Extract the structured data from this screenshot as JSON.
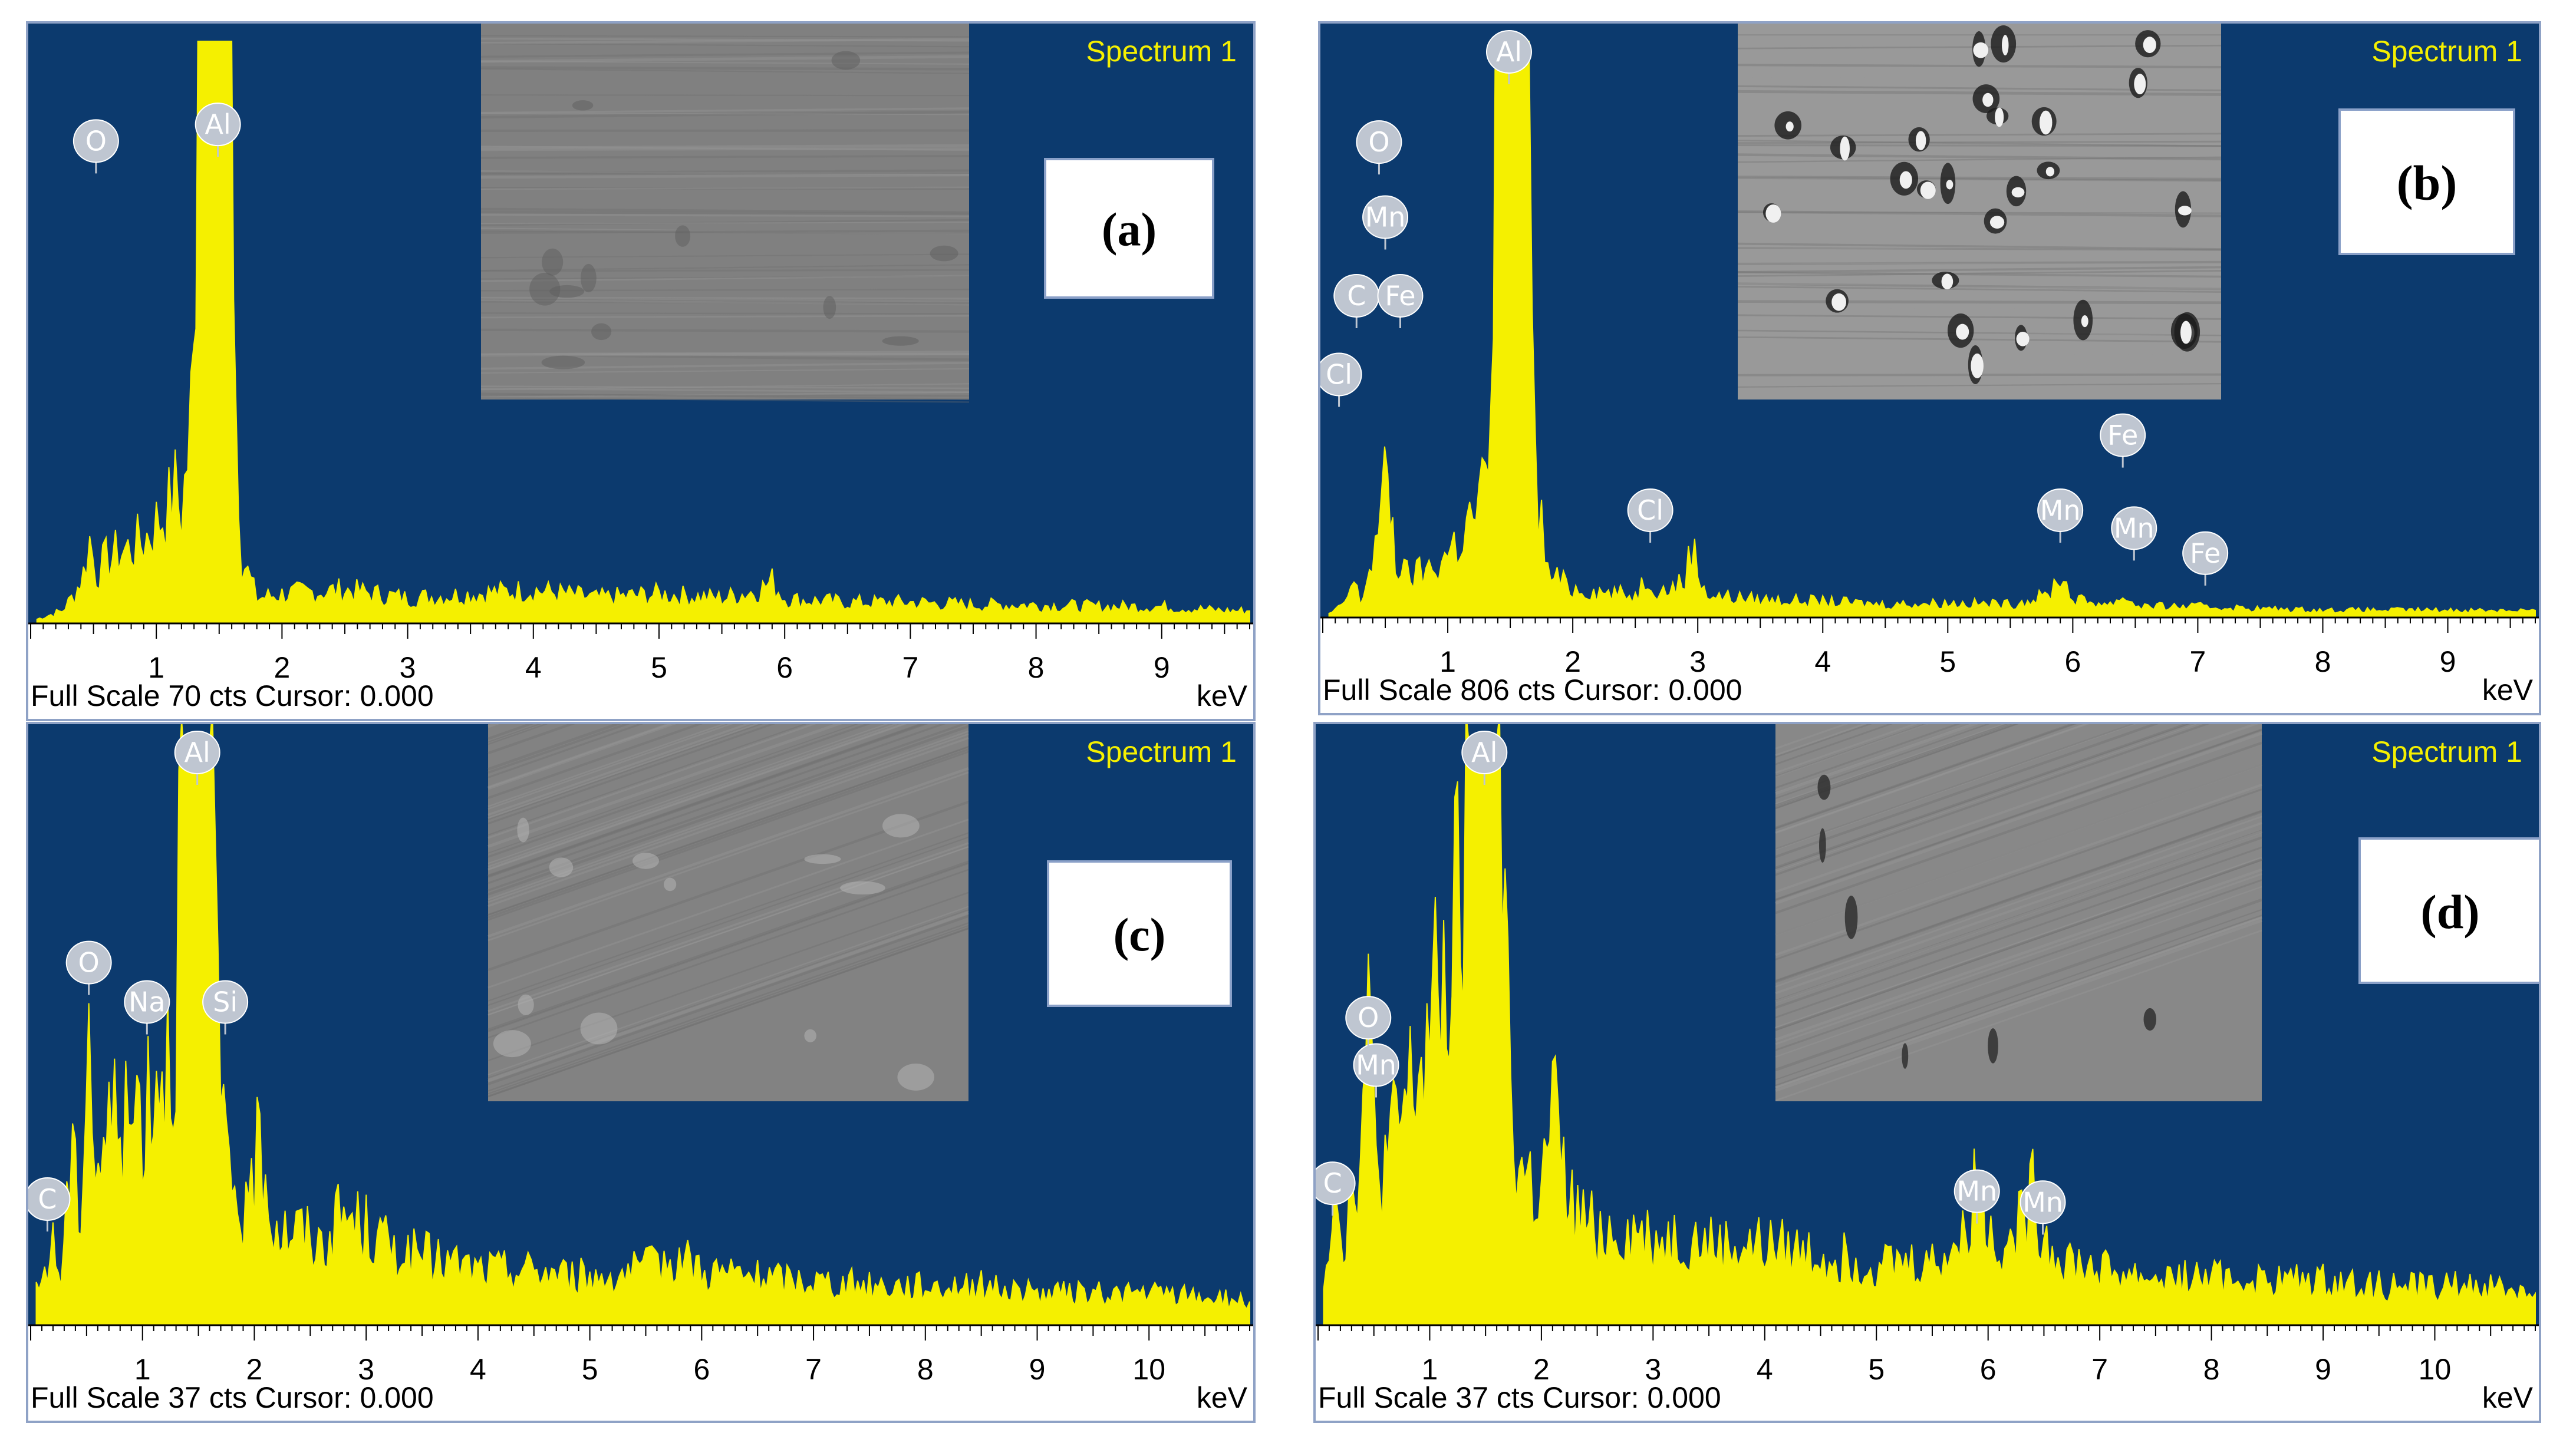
{
  "chart_data": [
    {
      "type": "area",
      "panel_label": "(a)",
      "spectrum_label": "Spectrum 1",
      "footer": "Full Scale 70 cts Cursor: 0.000",
      "xlabel": "keV",
      "xlim": [
        0,
        9.7
      ],
      "ylim": [
        0,
        70
      ],
      "xticks": [
        1,
        2,
        3,
        4,
        5,
        6,
        7,
        8,
        9
      ],
      "colors": {
        "background": "#0c3a6e",
        "spectrum": "#f5f000",
        "tag": "#bfc6d1",
        "inset": "#7c7c7c"
      },
      "inset": {
        "description": "SEM micrograph",
        "tone": "#808080"
      },
      "x": [
        0.05,
        0.25,
        0.35,
        0.42,
        0.47,
        0.52,
        0.6,
        0.7,
        0.8,
        0.9,
        1.0,
        1.1,
        1.15,
        1.2,
        1.25,
        1.3,
        1.33,
        1.36,
        1.4,
        1.45,
        1.5,
        1.55,
        1.6,
        1.63,
        1.68,
        1.8,
        2.0,
        2.5,
        3.0,
        3.5,
        4.0,
        4.5,
        5.0,
        5.5,
        5.8,
        5.9,
        6.0,
        6.1,
        6.5,
        7.0,
        7.5,
        8.0,
        8.5,
        9.0,
        9.5,
        9.7
      ],
      "y": [
        0.5,
        1.5,
        3.5,
        6,
        10,
        6,
        7.5,
        8.5,
        9,
        10,
        12,
        14,
        16,
        13,
        20,
        30,
        70,
        70,
        70,
        70,
        70,
        70,
        70,
        30,
        8,
        3,
        3.5,
        4,
        3,
        3.5,
        4,
        3,
        3.5,
        3,
        4,
        5,
        3,
        2.8,
        2.5,
        2.5,
        2.2,
        2.2,
        2,
        2,
        1.5,
        1.5
      ],
      "peaks": [
        {
          "element": "O",
          "energy": 0.52,
          "label_y": 58
        },
        {
          "element": "Al",
          "energy": 1.49,
          "label_y": 60
        }
      ]
    },
    {
      "type": "area",
      "panel_label": "(b)",
      "spectrum_label": "Spectrum 1",
      "footer": "Full Scale 806 cts Cursor: 0.000",
      "xlabel": "keV",
      "xlim": [
        0,
        9.7
      ],
      "ylim": [
        0,
        806
      ],
      "xticks": [
        1,
        2,
        3,
        4,
        5,
        6,
        7,
        8,
        9
      ],
      "colors": {
        "background": "#0c3a6e",
        "spectrum": "#f5f000",
        "tag": "#bfc6d1",
        "inset": "#9a9a9a"
      },
      "inset": {
        "description": "SEM micrograph with bright particles",
        "tone": "#999999"
      },
      "x": [
        0.05,
        0.15,
        0.2,
        0.25,
        0.3,
        0.35,
        0.42,
        0.47,
        0.52,
        0.58,
        0.65,
        0.75,
        0.9,
        1.0,
        1.1,
        1.2,
        1.3,
        1.35,
        1.38,
        1.42,
        1.48,
        1.55,
        1.6,
        1.65,
        1.7,
        1.8,
        2.0,
        2.5,
        2.6,
        2.7,
        2.9,
        2.95,
        3.0,
        3.1,
        3.5,
        4.0,
        4.5,
        5.0,
        5.5,
        5.8,
        5.9,
        6.0,
        6.3,
        6.4,
        6.5,
        6.6,
        7.0,
        7.5,
        8.0,
        8.5,
        9.0,
        9.7
      ],
      "y": [
        5,
        15,
        30,
        50,
        20,
        50,
        100,
        150,
        200,
        80,
        60,
        60,
        70,
        90,
        110,
        140,
        180,
        250,
        806,
        806,
        806,
        806,
        806,
        806,
        200,
        60,
        40,
        30,
        60,
        35,
        50,
        110,
        60,
        30,
        25,
        22,
        18,
        20,
        18,
        30,
        60,
        25,
        18,
        30,
        18,
        15,
        15,
        12,
        10,
        10,
        10,
        10
      ],
      "peaks": [
        {
          "element": "Cl",
          "energy": 0.13,
          "label_y": 340
        },
        {
          "element": "C",
          "energy": 0.27,
          "label_y": 450
        },
        {
          "element": "Fe",
          "energy": 0.62,
          "label_y": 450
        },
        {
          "element": "Mn",
          "energy": 0.5,
          "label_y": 560
        },
        {
          "element": "O",
          "energy": 0.45,
          "label_y": 665
        },
        {
          "element": "Al",
          "energy": 1.49,
          "label_y": 1000
        },
        {
          "element": "Cl",
          "energy": 2.62,
          "label_y": 150
        },
        {
          "element": "Mn",
          "energy": 5.9,
          "label_y": 150
        },
        {
          "element": "Fe",
          "energy": 6.4,
          "label_y": 255
        },
        {
          "element": "Mn",
          "energy": 6.49,
          "label_y": 125
        },
        {
          "element": "Fe",
          "energy": 7.06,
          "label_y": 90
        }
      ]
    },
    {
      "type": "area",
      "panel_label": "(c)",
      "spectrum_label": "Spectrum 1",
      "footer": "Full Scale 37 cts Cursor: 0.000",
      "xlabel": "keV",
      "xlim": [
        0,
        10.9
      ],
      "ylim": [
        0,
        37
      ],
      "xticks": [
        1,
        2,
        3,
        4,
        5,
        6,
        7,
        8,
        9,
        10
      ],
      "colors": {
        "background": "#0c3a6e",
        "spectrum": "#f5f000",
        "tag": "#bfc6d1",
        "inset": "#828282"
      },
      "inset": {
        "description": "SEM micrograph, striated surface",
        "tone": "#828282"
      },
      "x": [
        0.05,
        0.2,
        0.27,
        0.35,
        0.45,
        0.52,
        0.58,
        0.7,
        0.8,
        0.85,
        0.95,
        1.05,
        1.15,
        1.25,
        1.3,
        1.35,
        1.4,
        1.45,
        1.5,
        1.55,
        1.6,
        1.65,
        1.7,
        1.75,
        1.85,
        1.95,
        2.05,
        2.15,
        2.25,
        2.4,
        2.6,
        2.8,
        3.0,
        3.2,
        3.4,
        3.7,
        4.0,
        4.5,
        5.0,
        5.5,
        5.8,
        6.0,
        6.5,
        7.0,
        7.5,
        8.0,
        8.5,
        9.0,
        9.5,
        10.0,
        10.5,
        10.9
      ],
      "y": [
        2,
        5,
        3,
        10,
        8,
        20,
        10,
        12,
        15,
        12,
        14,
        15,
        17,
        18,
        22,
        33,
        37,
        37,
        37,
        37,
        37,
        30,
        12,
        10,
        8,
        6,
        13,
        7,
        6,
        6,
        5,
        7,
        6,
        5,
        4.5,
        4,
        3.5,
        3.5,
        3,
        3.5,
        4.5,
        3.5,
        3,
        2.8,
        2.5,
        2.5,
        2.5,
        2,
        2,
        2,
        1.8,
        1.5
      ],
      "peaks": [
        {
          "element": "C",
          "energy": 0.15,
          "label_y": 8
        },
        {
          "element": "O",
          "energy": 0.52,
          "label_y": 23
        },
        {
          "element": "Na",
          "energy": 1.04,
          "label_y": 20.5
        },
        {
          "element": "Al",
          "energy": 1.49,
          "label_y": 40
        },
        {
          "element": "Si",
          "energy": 1.74,
          "label_y": 20.5
        }
      ]
    },
    {
      "type": "area",
      "panel_label": "(d)",
      "spectrum_label": "Spectrum 1",
      "footer": "Full Scale 37 cts Cursor: 0.000",
      "xlabel": "keV",
      "xlim": [
        0,
        10.9
      ],
      "ylim": [
        0,
        37
      ],
      "xticks": [
        1,
        2,
        3,
        4,
        5,
        6,
        7,
        8,
        9,
        10
      ],
      "colors": {
        "background": "#0c3a6e",
        "spectrum": "#f5f000",
        "tag": "#bfc6d1",
        "inset": "#888888"
      },
      "inset": {
        "description": "SEM micrograph with pits",
        "tone": "#888888"
      },
      "x": [
        0.05,
        0.15,
        0.25,
        0.3,
        0.38,
        0.45,
        0.52,
        0.6,
        0.7,
        0.8,
        0.9,
        1.0,
        1.1,
        1.2,
        1.3,
        1.35,
        1.4,
        1.45,
        1.5,
        1.55,
        1.6,
        1.65,
        1.7,
        1.75,
        1.8,
        1.9,
        2.0,
        2.1,
        2.2,
        2.3,
        2.5,
        2.8,
        3.0,
        3.3,
        3.6,
        4.0,
        4.5,
        5.0,
        5.5,
        5.8,
        5.9,
        6.0,
        6.2,
        6.4,
        6.5,
        6.6,
        7.0,
        7.5,
        8.0,
        8.5,
        9.0,
        9.5,
        10.0,
        10.5,
        10.9
      ],
      "y": [
        3,
        9,
        5,
        9,
        12,
        18,
        11,
        10,
        12,
        14,
        16,
        18,
        21,
        23,
        28,
        37,
        37,
        37,
        37,
        37,
        37,
        33,
        20,
        12,
        10,
        9,
        8,
        14,
        9,
        7,
        6,
        6,
        5.5,
        5.5,
        5,
        5,
        4.5,
        4,
        4,
        5.5,
        10,
        6,
        5,
        8,
        6,
        4.5,
        3.5,
        3,
        3,
        2.8,
        2.8,
        2.5,
        2.5,
        2.5,
        2
      ],
      "peaks": [
        {
          "element": "C",
          "energy": 0.13,
          "label_y": 9
        },
        {
          "element": "Mn",
          "energy": 0.52,
          "label_y": 16.5
        },
        {
          "element": "O",
          "energy": 0.45,
          "label_y": 19.5
        },
        {
          "element": "Al",
          "energy": 1.49,
          "label_y": 40
        },
        {
          "element": "Mn",
          "energy": 5.9,
          "label_y": 8.5
        },
        {
          "element": "Mn",
          "energy": 6.49,
          "label_y": 7.8
        }
      ]
    }
  ]
}
